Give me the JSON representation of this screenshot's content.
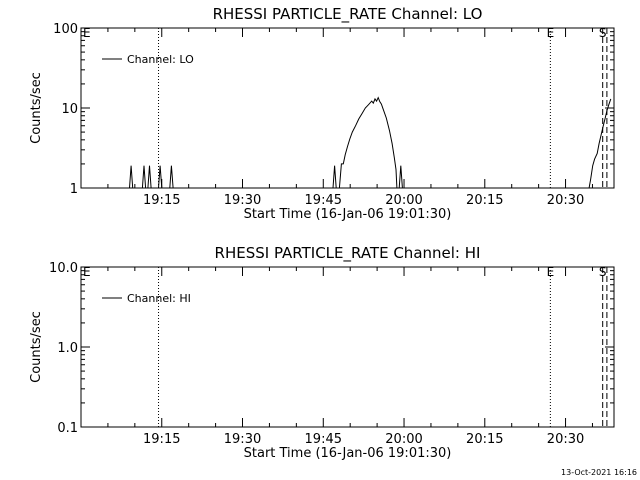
{
  "footer": {
    "timestamp": "13-Oct-2021 16:16"
  },
  "chart_data": [
    {
      "type": "line",
      "title": "RHESSI PARTICLE_RATE Channel: LO",
      "xlabel": "Start Time (16-Jan-06 19:01:30)",
      "ylabel": "Counts/sec",
      "yscale": "log",
      "ylim": [
        1,
        100
      ],
      "yticks": [
        {
          "v": 1,
          "label": "1"
        },
        {
          "v": 10,
          "label": "10"
        },
        {
          "v": 100,
          "label": "100"
        }
      ],
      "xlim_minutes": [
        19.0,
        20.65
      ],
      "xticks": [
        "19:15",
        "19:30",
        "19:45",
        "20:00",
        "20:15",
        "20:30"
      ],
      "legend": "top-left",
      "grid": false,
      "series": [
        {
          "name": "Channel: LO",
          "points": [
            [
              19.15,
              1
            ],
            [
              19.155,
              1.9
            ],
            [
              19.16,
              1
            ],
            [
              19.19,
              1
            ],
            [
              19.195,
              1.9
            ],
            [
              19.2,
              1
            ],
            [
              19.207,
              1
            ],
            [
              19.212,
              1.9
            ],
            [
              19.217,
              1
            ],
            [
              19.24,
              1
            ],
            [
              19.245,
              1.9
            ],
            [
              19.25,
              1
            ],
            [
              19.275,
              1
            ],
            [
              19.28,
              1.9
            ],
            [
              19.285,
              1
            ],
            [
              19.78,
              1
            ],
            [
              19.785,
              1.9
            ],
            [
              19.79,
              1
            ],
            [
              19.8,
              1
            ],
            [
              19.806,
              2.0
            ],
            [
              19.812,
              2.0
            ],
            [
              19.818,
              2.6
            ],
            [
              19.825,
              3.3
            ],
            [
              19.832,
              4.1
            ],
            [
              19.84,
              5.0
            ],
            [
              19.85,
              6.0
            ],
            [
              19.86,
              7.3
            ],
            [
              19.87,
              8.5
            ],
            [
              19.88,
              10.0
            ],
            [
              19.89,
              11.0
            ],
            [
              19.9,
              12.2
            ],
            [
              19.905,
              11.5
            ],
            [
              19.91,
              13.0
            ],
            [
              19.915,
              12.2
            ],
            [
              19.92,
              13.5
            ],
            [
              19.925,
              12.0
            ],
            [
              19.93,
              11.2
            ],
            [
              19.935,
              9.8
            ],
            [
              19.945,
              7.5
            ],
            [
              19.955,
              5.2
            ],
            [
              19.963,
              3.6
            ],
            [
              19.97,
              2.4
            ],
            [
              19.975,
              1.7
            ],
            [
              19.978,
              1
            ],
            [
              19.985,
              1
            ],
            [
              19.99,
              1.9
            ],
            [
              19.995,
              1
            ],
            [
              20.573,
              1
            ],
            [
              20.578,
              1.3
            ],
            [
              20.584,
              1.9
            ],
            [
              20.59,
              2.3
            ],
            [
              20.598,
              2.7
            ],
            [
              20.604,
              3.6
            ],
            [
              20.61,
              4.6
            ],
            [
              20.616,
              5.8
            ],
            [
              20.622,
              7.3
            ],
            [
              20.628,
              9.2
            ],
            [
              20.634,
              11.0
            ],
            [
              20.64,
              13.0
            ]
          ]
        }
      ],
      "markers": [
        {
          "label": "",
          "x_minutes": 19.24,
          "style": "dotted"
        },
        {
          "label": "E",
          "x_minutes": 20.453,
          "style": "dotted"
        },
        {
          "label": "S",
          "x_minutes": 20.615,
          "style": "dashed"
        },
        {
          "label": "",
          "x_minutes": 20.628,
          "style": "dashed"
        }
      ],
      "corner_markers": [
        {
          "label": "E"
        }
      ]
    },
    {
      "type": "line",
      "title": "RHESSI PARTICLE_RATE Channel: HI",
      "xlabel": "Start Time (16-Jan-06 19:01:30)",
      "ylabel": "Counts/sec",
      "yscale": "log",
      "ylim": [
        0.1,
        10
      ],
      "yticks": [
        {
          "v": 0.1,
          "label": "0.1"
        },
        {
          "v": 1,
          "label": "1.0"
        },
        {
          "v": 10,
          "label": "10.0"
        }
      ],
      "xlim_minutes": [
        19.0,
        20.65
      ],
      "xticks": [
        "19:15",
        "19:30",
        "19:45",
        "20:00",
        "20:15",
        "20:30"
      ],
      "legend": "top-left",
      "grid": false,
      "series": [
        {
          "name": "Channel: HI",
          "points": []
        }
      ],
      "markers": [
        {
          "label": "",
          "x_minutes": 19.24,
          "style": "dotted"
        },
        {
          "label": "E",
          "x_minutes": 20.453,
          "style": "dotted"
        },
        {
          "label": "S",
          "x_minutes": 20.615,
          "style": "dashed"
        },
        {
          "label": "",
          "x_minutes": 20.628,
          "style": "dashed"
        }
      ],
      "corner_markers": [
        {
          "label": "E"
        }
      ]
    }
  ]
}
